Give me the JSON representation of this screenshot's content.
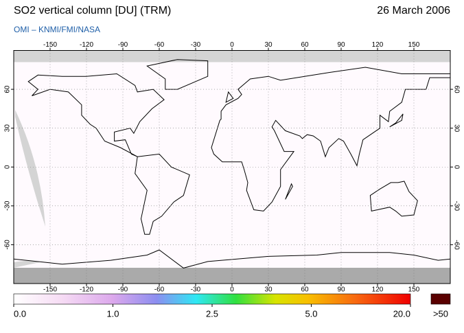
{
  "header": {
    "title": "SO2 vertical column [DU] (TRM)",
    "subtitle": "OMI  –  KNMI/FMI/NASA",
    "date": "26 March 2006"
  },
  "map": {
    "lon_ticks": [
      -150,
      -120,
      -90,
      -60,
      -30,
      0,
      30,
      60,
      90,
      120,
      150
    ],
    "lat_ticks": [
      60,
      30,
      0,
      -30,
      -60
    ]
  },
  "colorbar": {
    "ticks": [
      {
        "value": 0,
        "label": "0.0"
      },
      {
        "value": 1,
        "label": "1.0"
      },
      {
        "value": 2.5,
        "label": "2.5"
      },
      {
        "value": 5,
        "label": "5.0"
      },
      {
        "value": 20,
        "label": "20.0"
      }
    ],
    "over_label": ">50"
  }
}
